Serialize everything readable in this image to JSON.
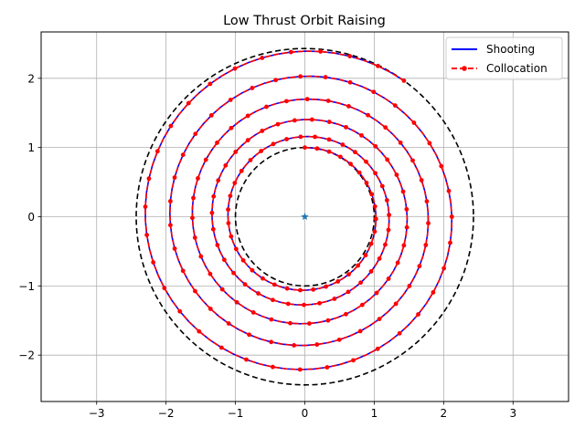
{
  "chart_data": {
    "type": "line",
    "title": "Low Thrust Orbit Raising",
    "xlabel": "",
    "ylabel": "",
    "xlim": [
      -3.8,
      3.8
    ],
    "ylim": [
      -2.67,
      2.67
    ],
    "xticks": [
      -3,
      -2,
      -1,
      0,
      1,
      2,
      3
    ],
    "xtick_labels": [
      "−3",
      "−2",
      "−1",
      "0",
      "1",
      "2",
      "3"
    ],
    "yticks": [
      -2,
      -1,
      0,
      1,
      2
    ],
    "ytick_labels": [
      "−2",
      "−1",
      "0",
      "1",
      "2"
    ],
    "grid": true,
    "legend_position": "top-right",
    "aspect": "equal",
    "colors": {
      "shooting": "#0000ff",
      "collocation": "#ff0000",
      "boundary": "#000000",
      "center_marker": "#1f77b4",
      "grid": "#b0b0b0"
    },
    "spiral": {
      "r_start": 1.0,
      "r_end": 2.43,
      "revolutions": 5.1,
      "start_angle_deg": 90,
      "end_angle_deg": 0
    },
    "series": [
      {
        "name": "Shooting",
        "style": "solid line"
      },
      {
        "name": "Collocation",
        "style": "dashed line with dot markers"
      }
    ],
    "reference_circles": [
      {
        "radius": 1.0,
        "style": "dashed"
      },
      {
        "radius": 2.43,
        "style": "dashed"
      }
    ],
    "center_marker": {
      "x": 0,
      "y": 0,
      "marker": "star"
    }
  }
}
